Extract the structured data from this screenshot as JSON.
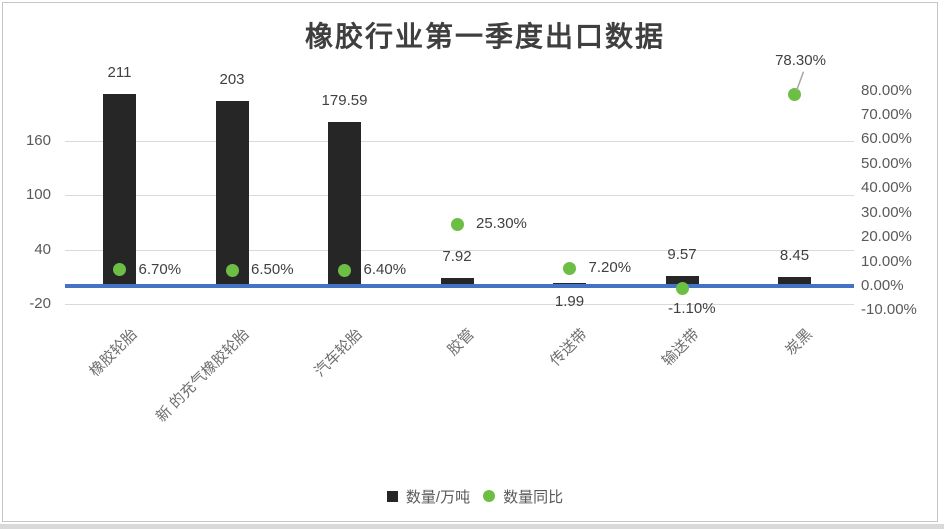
{
  "chart_data": {
    "type": "bar",
    "title": "橡胶行业第一季度出口数据",
    "categories": [
      "橡胶轮胎",
      "新 的充气橡胶轮胎",
      "汽车轮胎",
      "胶管",
      "传送带",
      "输送带",
      "炭黑"
    ],
    "series": [
      {
        "name": "数量/万吨",
        "type": "bar",
        "axis": "left",
        "color": "#262626",
        "values": [
          211,
          203,
          179.59,
          7.92,
          1.99,
          9.57,
          8.45
        ],
        "labels": [
          "211",
          "203",
          "179.59",
          "7.92",
          "1.99",
          "9.57",
          "8.45"
        ],
        "label_pos": [
          "above",
          "above",
          "above",
          "above",
          "below",
          "above",
          "above"
        ]
      },
      {
        "name": "数量同比",
        "type": "scatter",
        "axis": "right",
        "color": "#6dbe45",
        "values": [
          6.7,
          6.5,
          6.4,
          25.3,
          7.2,
          -1.1,
          78.3
        ],
        "labels": [
          "6.70%",
          "6.50%",
          "6.40%",
          "25.30%",
          "7.20%",
          "-1.10%",
          "78.30%"
        ],
        "label_pos": [
          "right",
          "right",
          "right",
          "right",
          "right",
          "below",
          "above-leader"
        ]
      }
    ],
    "left_axis": {
      "min": -20,
      "max": 220,
      "ticks": [
        160,
        100,
        40,
        -20
      ],
      "tick_labels": [
        "160",
        "100",
        "40",
        "-20"
      ]
    },
    "right_axis": {
      "min": -10,
      "max": 90,
      "ticks": [
        80,
        70,
        60,
        50,
        40,
        30,
        20,
        10,
        0,
        -10
      ],
      "tick_labels": [
        "80.00%",
        "70.00%",
        "60.00%",
        "50.00%",
        "40.00%",
        "30.00%",
        "20.00%",
        "10.00%",
        "0.00%",
        "-10.00%"
      ]
    },
    "grid": "horizontal-only",
    "legend_position": "bottom",
    "colors": {
      "bar": "#262626",
      "marker": "#6dbe45",
      "zero_axis_line": "#4472c4",
      "gridline": "#d9d9d9",
      "tick_text": "#595959",
      "data_label_text": "#404040",
      "title_text": "#3f3f3f",
      "frame_border": "#c6c6c6"
    }
  }
}
